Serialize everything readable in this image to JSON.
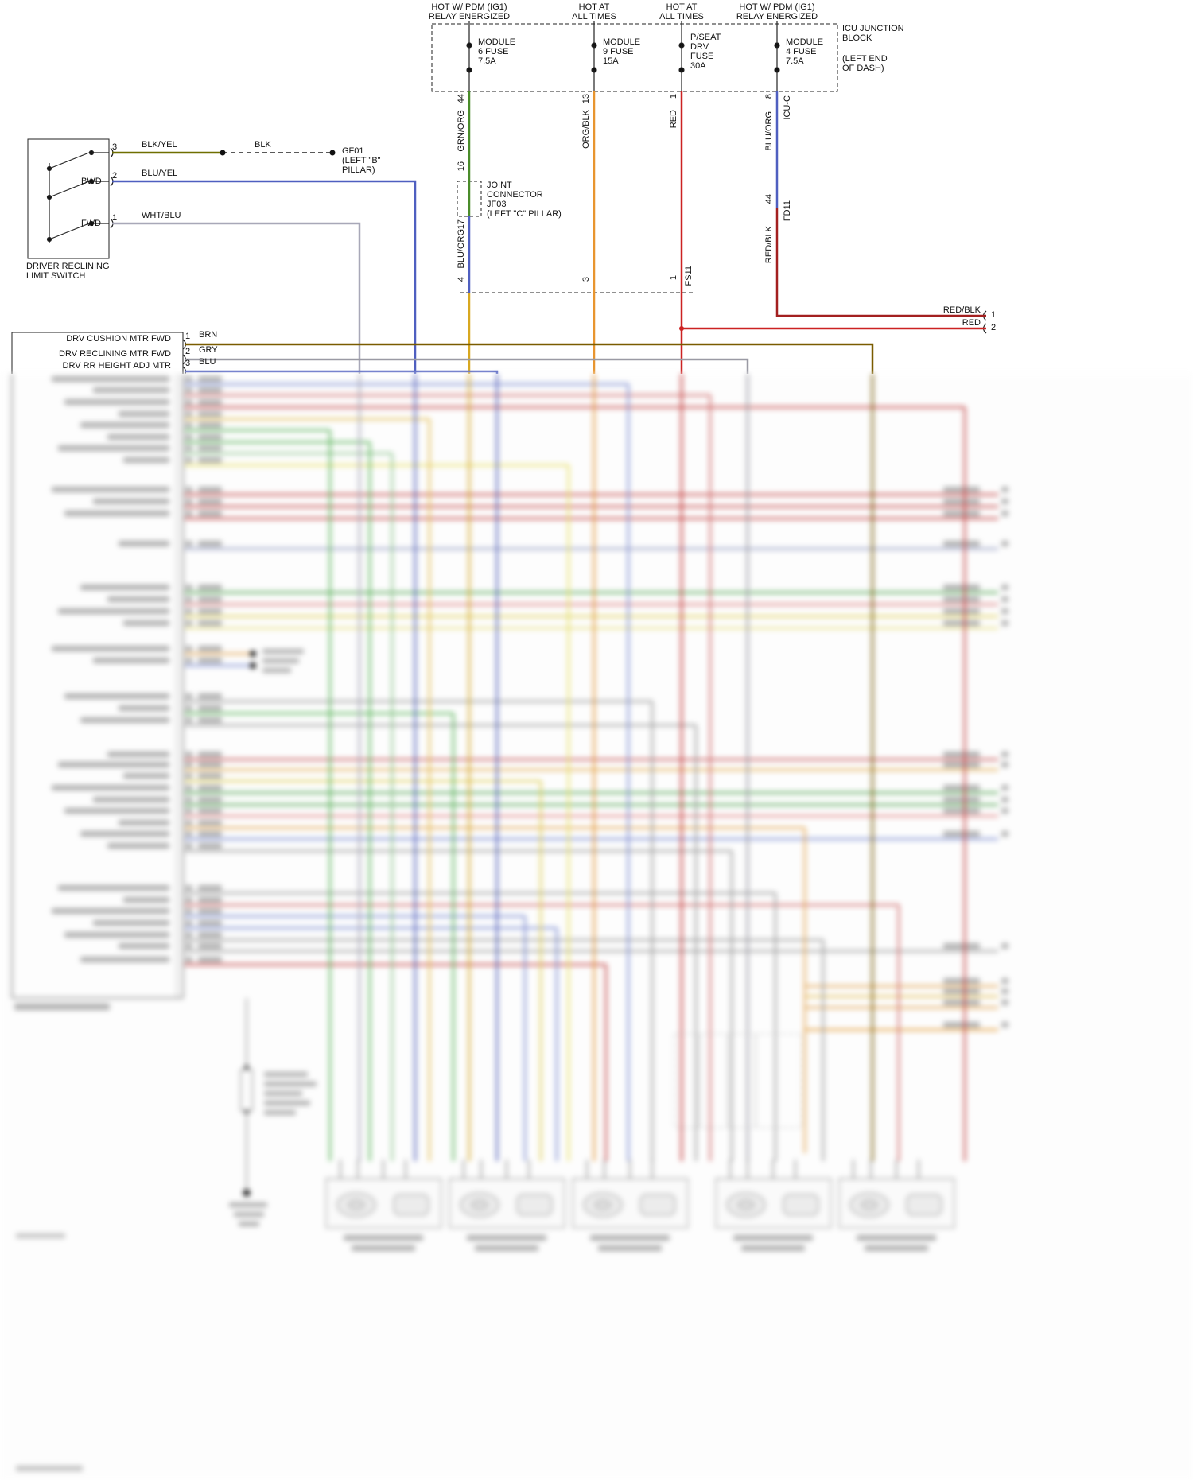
{
  "colors": {
    "green": "#4a8c2a",
    "orange": "#e8952f",
    "red": "#cc2222",
    "dark_red": "#a32020",
    "blue": "#4f5fc0",
    "olive": "#6f6f00",
    "brown": "#7a5c00",
    "gray": "#9a9aa4",
    "gold": "#d8a820"
  },
  "power": {
    "feeds": [
      {
        "line1": "HOT W/ PDM (IG1)",
        "line2": "RELAY ENERGIZED"
      },
      {
        "line1": "HOT AT",
        "line2": "ALL TIMES"
      },
      {
        "line1": "HOT AT",
        "line2": "ALL TIMES"
      },
      {
        "line1": "HOT W/ PDM (IG1)",
        "line2": "RELAY ENERGIZED"
      }
    ],
    "block": {
      "line1": "ICU JUNCTION",
      "line2": "BLOCK",
      "line3": "(LEFT END",
      "line4": "OF DASH)"
    },
    "fuses": [
      {
        "l1": "MODULE",
        "l2": "6 FUSE",
        "l3": "7.5A"
      },
      {
        "l1": "MODULE",
        "l2": "9 FUSE",
        "l3": "15A"
      },
      {
        "l1": "P/SEAT",
        "l2": "DRV",
        "l3": "FUSE",
        "l4": "30A"
      },
      {
        "l1": "MODULE",
        "l2": "4 FUSE",
        "l3": "7.5A"
      }
    ]
  },
  "wires": {
    "w1": {
      "pin_top": "44",
      "label_top": "GRN/ORG",
      "pin_in": "16",
      "pin_out": "17",
      "label_bottom": "BLU/ORG",
      "pin_bottom": "4",
      "joint": {
        "l1": "JOINT",
        "l2": "CONNECTOR",
        "l3": "JF03",
        "l4": "(LEFT \"C\" PILLAR)"
      }
    },
    "w2": {
      "pin_top": "13",
      "label": "ORG/BLK",
      "pin_bottom": "3"
    },
    "w3": {
      "pin_top": "1",
      "label": "RED",
      "conn": "FS11",
      "pin_bottom": "1"
    },
    "w4": {
      "pin_top": "8",
      "conn_top": "ICU-C",
      "label_top": "BLU/ORG",
      "pin_mid": "44",
      "conn_mid": "FD11",
      "label_bottom": "RED/BLK"
    },
    "right_exits": [
      {
        "label": "RED/BLK",
        "pin": "1"
      },
      {
        "label": "RED",
        "pin": "2"
      }
    ]
  },
  "limit_switch": {
    "title1": "DRIVER RECLINING",
    "title2": "LIMIT SWITCH",
    "pins": [
      {
        "num": "3",
        "wire": "BLK/YEL"
      },
      {
        "num": "2",
        "pos": "BWD",
        "wire": "BLU/YEL"
      },
      {
        "num": "1",
        "pos": "FWD",
        "wire": "WHT/BLU"
      }
    ],
    "ground": {
      "wire": "BLK",
      "l1": "GF01",
      "l2": "(LEFT \"B\"",
      "l3": "PILLAR)"
    }
  },
  "connector": {
    "rows": [
      {
        "label": "DRV CUSHION MTR FWD",
        "pin": "1",
        "wire": "BRN"
      },
      {
        "label": "DRV RECLINING MTR FWD",
        "pin": "2",
        "wire": "GRY"
      },
      {
        "label": "DRV RR HEIGHT ADJ MTR",
        "pin": "3",
        "wire": "BLU"
      }
    ]
  }
}
